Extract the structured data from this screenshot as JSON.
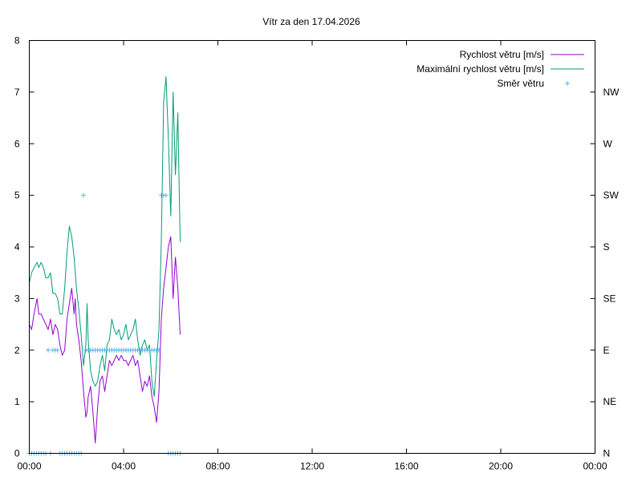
{
  "chart_data": {
    "type": "line",
    "title": "Vítr za den 17.04.2026",
    "x_tick_labels": [
      "00:00",
      "04:00",
      "08:00",
      "12:00",
      "16:00",
      "20:00",
      "00:00"
    ],
    "x_range_hours": [
      0,
      24
    ],
    "y_left": {
      "ylim": [
        0,
        8
      ],
      "ticks": [
        "0",
        "1",
        "2",
        "3",
        "4",
        "5",
        "6",
        "7",
        "8"
      ]
    },
    "y_right": {
      "ylim": [
        0,
        8
      ],
      "ticks": [
        {
          "value": 0,
          "label": "N"
        },
        {
          "value": 1,
          "label": "NE"
        },
        {
          "value": 2,
          "label": "E"
        },
        {
          "value": 3,
          "label": "SE"
        },
        {
          "value": 4,
          "label": "S"
        },
        {
          "value": 5,
          "label": "SW"
        },
        {
          "value": 6,
          "label": "W"
        },
        {
          "value": 7,
          "label": "NW"
        }
      ]
    },
    "grid": false,
    "legend_position": "top-right",
    "series": [
      {
        "name": "Rychlost větru [m/s]",
        "color": "#9400d3",
        "style": "line",
        "x": [
          0.0,
          0.1,
          0.2,
          0.33,
          0.4,
          0.5,
          0.6,
          0.7,
          0.8,
          0.9,
          1.0,
          1.1,
          1.2,
          1.3,
          1.4,
          1.5,
          1.6,
          1.7,
          1.8,
          1.9,
          1.95,
          2.0,
          2.1,
          2.2,
          2.3,
          2.4,
          2.45,
          2.5,
          2.6,
          2.7,
          2.8,
          2.9,
          3.0,
          3.1,
          3.2,
          3.3,
          3.4,
          3.5,
          3.6,
          3.7,
          3.8,
          3.9,
          4.0,
          4.1,
          4.2,
          4.3,
          4.4,
          4.5,
          4.6,
          4.7,
          4.8,
          4.9,
          5.0,
          5.1,
          5.2,
          5.3,
          5.4,
          5.5,
          5.6,
          5.7,
          5.8,
          5.9,
          6.0,
          6.1,
          6.2,
          6.3,
          6.4
        ],
        "y": [
          2.5,
          2.4,
          2.7,
          3.0,
          2.7,
          2.7,
          2.6,
          2.5,
          2.4,
          2.6,
          2.3,
          2.5,
          2.4,
          2.1,
          1.9,
          2.0,
          2.6,
          2.9,
          3.2,
          2.7,
          3.0,
          2.5,
          2.2,
          1.8,
          1.2,
          0.7,
          0.8,
          1.1,
          1.3,
          0.8,
          0.2,
          0.9,
          1.4,
          1.5,
          1.2,
          1.5,
          1.8,
          1.7,
          1.8,
          1.9,
          1.8,
          1.9,
          1.8,
          1.8,
          1.7,
          1.8,
          1.9,
          1.7,
          1.8,
          1.5,
          1.2,
          1.4,
          1.3,
          1.5,
          1.1,
          0.9,
          0.6,
          1.2,
          2.6,
          3.2,
          3.6,
          4.0,
          4.2,
          3.0,
          3.8,
          3.2,
          2.3
        ]
      },
      {
        "name": "Maximální rychlost větru [m/s]",
        "color": "#009e73",
        "style": "line",
        "x": [
          0.0,
          0.1,
          0.2,
          0.33,
          0.4,
          0.5,
          0.6,
          0.7,
          0.8,
          0.9,
          1.0,
          1.1,
          1.2,
          1.3,
          1.4,
          1.5,
          1.6,
          1.7,
          1.8,
          1.9,
          1.95,
          2.0,
          2.1,
          2.2,
          2.3,
          2.4,
          2.45,
          2.5,
          2.6,
          2.7,
          2.8,
          2.9,
          3.0,
          3.1,
          3.2,
          3.3,
          3.4,
          3.5,
          3.6,
          3.7,
          3.8,
          3.9,
          4.0,
          4.1,
          4.2,
          4.3,
          4.4,
          4.5,
          4.6,
          4.7,
          4.8,
          4.9,
          5.0,
          5.1,
          5.2,
          5.3,
          5.4,
          5.5,
          5.6,
          5.7,
          5.8,
          5.9,
          6.0,
          6.1,
          6.2,
          6.3,
          6.4
        ],
        "y": [
          3.3,
          3.5,
          3.6,
          3.7,
          3.6,
          3.7,
          3.6,
          3.4,
          3.4,
          3.5,
          3.1,
          3.1,
          3.0,
          2.7,
          2.7,
          3.2,
          3.9,
          4.4,
          4.2,
          3.8,
          3.5,
          3.2,
          2.8,
          2.3,
          1.7,
          2.1,
          2.9,
          2.2,
          1.6,
          1.4,
          1.3,
          1.4,
          1.7,
          1.9,
          1.6,
          2.1,
          2.2,
          2.6,
          2.4,
          2.3,
          2.4,
          2.2,
          2.3,
          2.5,
          2.2,
          2.3,
          2.4,
          2.6,
          2.2,
          1.9,
          2.1,
          2.2,
          2.0,
          2.1,
          1.4,
          1.1,
          1.8,
          2.4,
          4.1,
          6.8,
          7.3,
          6.1,
          4.6,
          7.0,
          5.4,
          6.6,
          4.1
        ]
      },
      {
        "name": "Směr větru",
        "color": "#56b4e9",
        "style": "points",
        "x": [
          0.0,
          0.1,
          0.2,
          0.3,
          0.4,
          0.5,
          0.6,
          0.7,
          0.8,
          0.9,
          1.0,
          1.1,
          1.2,
          1.3,
          1.4,
          1.5,
          1.6,
          1.7,
          1.8,
          1.9,
          2.0,
          2.1,
          2.2,
          2.3,
          2.4,
          2.5,
          2.6,
          2.7,
          2.8,
          2.9,
          3.0,
          3.1,
          3.2,
          3.3,
          3.4,
          3.5,
          3.6,
          3.7,
          3.8,
          3.9,
          4.0,
          4.1,
          4.2,
          4.3,
          4.4,
          4.5,
          4.6,
          4.7,
          4.8,
          4.9,
          5.0,
          5.1,
          5.2,
          5.3,
          5.4,
          5.5,
          5.6,
          5.7,
          5.8,
          5.9,
          6.0,
          6.1,
          6.2,
          6.3,
          6.4
        ],
        "y": [
          0,
          0,
          0,
          0,
          0,
          0,
          0,
          0,
          2,
          0,
          2,
          2,
          2,
          0,
          0,
          0,
          0,
          0,
          0,
          0,
          0,
          0,
          0,
          5,
          2,
          2,
          2,
          2,
          2,
          2,
          2,
          2,
          2,
          2,
          2,
          2,
          2,
          2,
          2,
          2,
          2,
          2,
          2,
          2,
          2,
          2,
          2,
          2,
          2,
          2,
          2,
          2,
          2,
          2,
          2,
          2,
          5,
          5,
          5,
          0,
          0,
          0,
          0,
          0,
          0
        ]
      }
    ]
  }
}
